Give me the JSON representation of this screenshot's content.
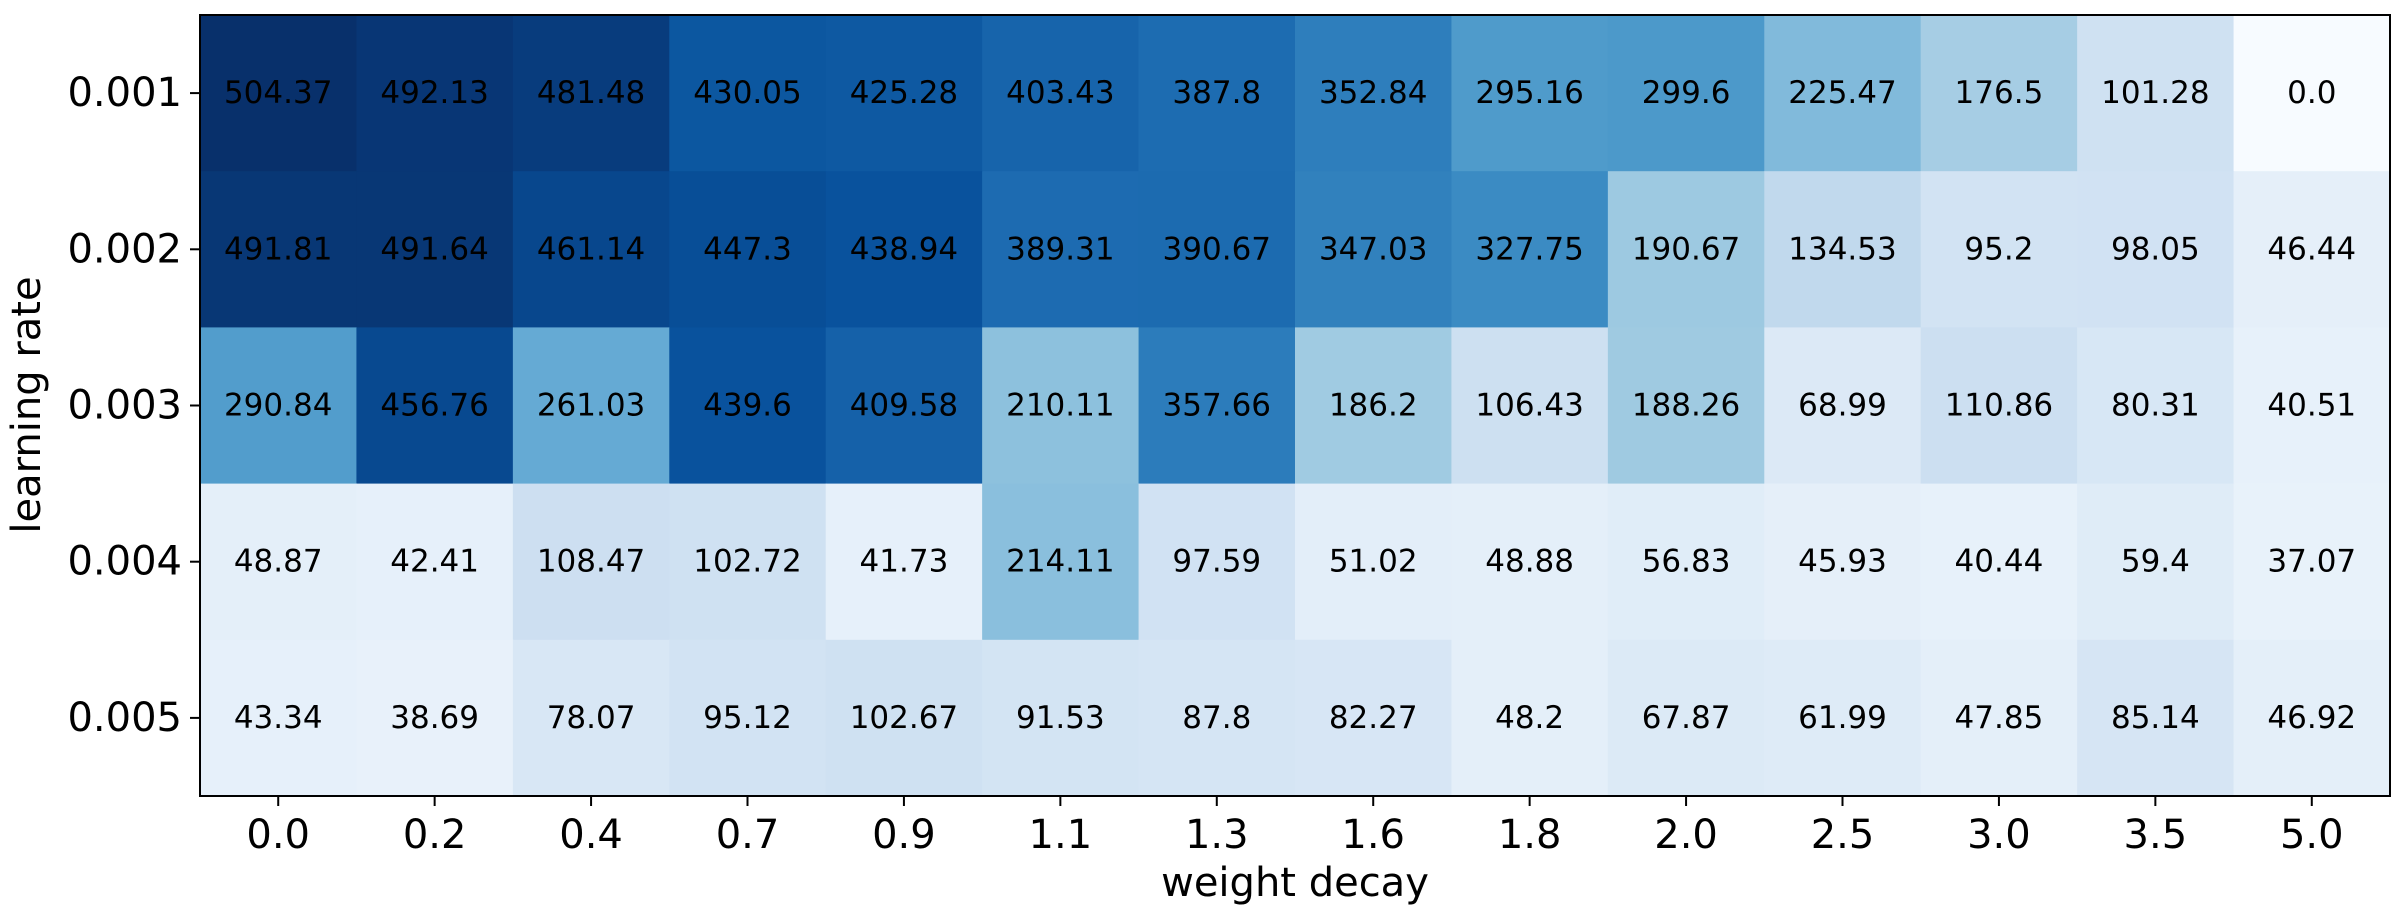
{
  "chart_data": {
    "type": "heatmap",
    "colormap": "Blues",
    "xlabel": "weight decay",
    "ylabel": "learning rate",
    "x_categories": [
      "0.0",
      "0.2",
      "0.4",
      "0.7",
      "0.9",
      "1.1",
      "1.3",
      "1.6",
      "1.8",
      "2.0",
      "2.5",
      "3.0",
      "3.5",
      "5.0"
    ],
    "y_categories": [
      "0.001",
      "0.002",
      "0.003",
      "0.004",
      "0.005"
    ],
    "values": [
      [
        504.37,
        492.13,
        481.48,
        430.05,
        425.28,
        403.43,
        387.8,
        352.84,
        295.16,
        299.6,
        225.47,
        176.5,
        101.28,
        0.0
      ],
      [
        491.81,
        491.64,
        461.14,
        447.3,
        438.94,
        389.31,
        390.67,
        347.03,
        327.75,
        190.67,
        134.53,
        95.2,
        98.05,
        46.44
      ],
      [
        290.84,
        456.76,
        261.03,
        439.6,
        409.58,
        210.11,
        357.66,
        186.2,
        106.43,
        188.26,
        68.99,
        110.86,
        80.31,
        40.51
      ],
      [
        48.87,
        42.41,
        108.47,
        102.72,
        41.73,
        214.11,
        97.59,
        51.02,
        48.88,
        56.83,
        45.93,
        40.44,
        59.4,
        37.07
      ],
      [
        43.34,
        38.69,
        78.07,
        95.12,
        102.67,
        91.53,
        87.8,
        82.27,
        48.2,
        67.87,
        61.99,
        47.85,
        85.14,
        46.92
      ]
    ],
    "value_labels": [
      [
        "504.37",
        "492.13",
        "481.48",
        "430.05",
        "425.28",
        "403.43",
        "387.8",
        "352.84",
        "295.16",
        "299.6",
        "225.47",
        "176.5",
        "101.28",
        "0.0"
      ],
      [
        "491.81",
        "491.64",
        "461.14",
        "447.3",
        "438.94",
        "389.31",
        "390.67",
        "347.03",
        "327.75",
        "190.67",
        "134.53",
        "95.2",
        "98.05",
        "46.44"
      ],
      [
        "290.84",
        "456.76",
        "261.03",
        "439.6",
        "409.58",
        "210.11",
        "357.66",
        "186.2",
        "106.43",
        "188.26",
        "68.99",
        "110.86",
        "80.31",
        "40.51"
      ],
      [
        "48.87",
        "42.41",
        "108.47",
        "102.72",
        "41.73",
        "214.11",
        "97.59",
        "51.02",
        "48.88",
        "56.83",
        "45.93",
        "40.44",
        "59.4",
        "37.07"
      ],
      [
        "43.34",
        "38.69",
        "78.07",
        "95.12",
        "102.67",
        "91.53",
        "87.8",
        "82.27",
        "48.2",
        "67.87",
        "61.99",
        "47.85",
        "85.14",
        "46.92"
      ]
    ],
    "value_range": [
      0.0,
      504.37
    ],
    "grid": false,
    "legend": "none"
  }
}
